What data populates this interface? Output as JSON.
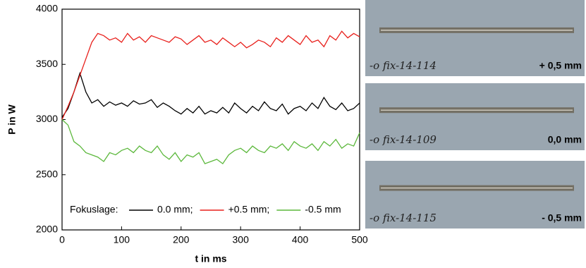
{
  "chart_data": {
    "type": "line",
    "xlabel": "t in ms",
    "ylabel": "P in W",
    "legend_title": "Fokuslage:",
    "x": [
      0,
      10,
      20,
      30,
      40,
      50,
      60,
      70,
      80,
      90,
      100,
      110,
      120,
      130,
      140,
      150,
      160,
      170,
      180,
      190,
      200,
      210,
      220,
      230,
      240,
      250,
      260,
      270,
      280,
      290,
      300,
      310,
      320,
      330,
      340,
      350,
      360,
      370,
      380,
      390,
      400,
      410,
      420,
      430,
      440,
      450,
      460,
      470,
      480,
      490,
      500
    ],
    "series": [
      {
        "name": "0.0 mm;",
        "color": "#000000",
        "values": [
          3020,
          3100,
          3250,
          3420,
          3250,
          3150,
          3180,
          3120,
          3160,
          3130,
          3150,
          3120,
          3170,
          3140,
          3150,
          3180,
          3110,
          3150,
          3120,
          3080,
          3050,
          3100,
          3060,
          3120,
          3050,
          3080,
          3060,
          3110,
          3060,
          3150,
          3100,
          3060,
          3120,
          3080,
          3160,
          3100,
          3080,
          3140,
          3050,
          3100,
          3120,
          3080,
          3150,
          3100,
          3200,
          3120,
          3090,
          3150,
          3080,
          3100,
          3150
        ]
      },
      {
        "name": "+0.5 mm;",
        "color": "#e8201c",
        "values": [
          3000,
          3120,
          3250,
          3400,
          3550,
          3700,
          3780,
          3760,
          3720,
          3740,
          3700,
          3780,
          3720,
          3750,
          3700,
          3760,
          3740,
          3720,
          3700,
          3750,
          3730,
          3680,
          3720,
          3760,
          3700,
          3720,
          3680,
          3740,
          3700,
          3660,
          3700,
          3650,
          3680,
          3720,
          3700,
          3660,
          3740,
          3700,
          3760,
          3720,
          3680,
          3760,
          3700,
          3720,
          3660,
          3760,
          3720,
          3800,
          3740,
          3780,
          3750
        ]
      },
      {
        "name": "-0.5 mm",
        "color": "#5cb83c",
        "values": [
          3000,
          2950,
          2800,
          2760,
          2700,
          2680,
          2660,
          2620,
          2700,
          2680,
          2720,
          2740,
          2700,
          2760,
          2720,
          2700,
          2760,
          2680,
          2640,
          2700,
          2620,
          2680,
          2660,
          2700,
          2600,
          2620,
          2640,
          2600,
          2680,
          2720,
          2740,
          2700,
          2760,
          2720,
          2700,
          2760,
          2740,
          2780,
          2720,
          2800,
          2760,
          2740,
          2780,
          2720,
          2800,
          2760,
          2820,
          2740,
          2780,
          2760,
          2880
        ]
      }
    ],
    "xlim": [
      0,
      500
    ],
    "xticks": [
      0,
      100,
      200,
      300,
      400,
      500
    ],
    "ylim": [
      2000,
      4000
    ],
    "yticks": [
      2000,
      2500,
      3000,
      3500,
      4000
    ],
    "grid": false
  },
  "photos": [
    {
      "label": "-o fix-14-114",
      "caption": "+ 0,5 mm",
      "color": "#e8201c"
    },
    {
      "label": "-o fix-14-109",
      "caption": "0,0 mm",
      "color": "#000000"
    },
    {
      "label": "-o fix-14-115",
      "caption": "- 0,5 mm",
      "color": "#5cb83c"
    }
  ]
}
